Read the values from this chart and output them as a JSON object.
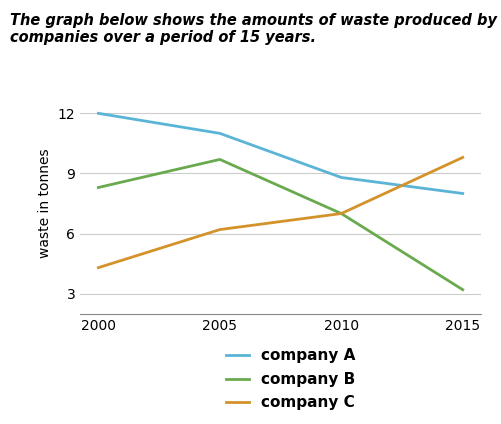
{
  "title_line1": "The graph below shows the amounts of waste produced by three",
  "title_line2": "companies over a period of 15 years.",
  "ylabel": "waste in tonnes",
  "years": [
    2000,
    2005,
    2010,
    2015
  ],
  "company_A": [
    12.0,
    11.0,
    8.8,
    8.0
  ],
  "company_B": [
    8.3,
    9.7,
    7.0,
    3.2
  ],
  "company_C": [
    4.3,
    6.2,
    7.0,
    9.8
  ],
  "color_A": "#5ab4d6",
  "color_B": "#6aaa4e",
  "color_C": "#d4922a",
  "ylim": [
    2,
    13
  ],
  "yticks": [
    3,
    6,
    9,
    12
  ],
  "xticks": [
    2000,
    2005,
    2010,
    2015
  ],
  "legend_labels": [
    "company A",
    "company B",
    "company C"
  ],
  "title_fontsize": 10.5,
  "axis_fontsize": 10,
  "tick_fontsize": 10,
  "legend_fontsize": 11
}
